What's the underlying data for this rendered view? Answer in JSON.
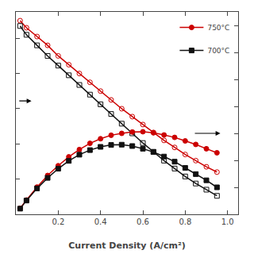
{
  "chart_data": {
    "type": "line",
    "xlabel": "Current Density (A/cm²)",
    "tick_labels": "x",
    "grid": false,
    "legend": "upper right",
    "xlim": [
      0.0,
      1.05
    ],
    "xticks": [
      0.2,
      0.4,
      0.6,
      0.8,
      {
        "value": 1.0,
        "label": "1.0"
      }
    ],
    "ylim": [
      0.0,
      1.15
    ],
    "yticks": [
      0.0,
      0.2,
      0.4,
      0.6,
      0.8,
      1.0
    ],
    "y2lim": [
      0.0,
      0.75
    ],
    "y2ticks": [
      0.0,
      0.1,
      0.2,
      0.3,
      0.4,
      0.5,
      0.6,
      0.7
    ],
    "series": [
      {
        "name": "750°C",
        "color": "#cc0000",
        "marker": "circle-open",
        "line_style": "solid",
        "axis": "y",
        "x": [
          0.02,
          0.05,
          0.1,
          0.15,
          0.2,
          0.25,
          0.3,
          0.35,
          0.4,
          0.45,
          0.5,
          0.55,
          0.6,
          0.65,
          0.7,
          0.75,
          0.8,
          0.85,
          0.9,
          0.95
        ],
        "values": [
          1.1,
          1.06,
          1.01,
          0.96,
          0.9,
          0.85,
          0.8,
          0.75,
          0.7,
          0.65,
          0.6,
          0.555,
          0.51,
          0.465,
          0.42,
          0.38,
          0.34,
          0.305,
          0.27,
          0.24
        ]
      },
      {
        "name": "700°C",
        "color": "#111111",
        "marker": "square-open",
        "line_style": "solid",
        "axis": "y",
        "x": [
          0.02,
          0.05,
          0.1,
          0.15,
          0.2,
          0.25,
          0.3,
          0.35,
          0.4,
          0.45,
          0.5,
          0.55,
          0.6,
          0.65,
          0.7,
          0.75,
          0.8,
          0.85,
          0.9,
          0.95
        ],
        "values": [
          1.07,
          1.02,
          0.96,
          0.9,
          0.845,
          0.79,
          0.735,
          0.68,
          0.625,
          0.57,
          0.515,
          0.46,
          0.405,
          0.355,
          0.305,
          0.26,
          0.215,
          0.175,
          0.14,
          0.105
        ]
      },
      {
        "name": "750°C",
        "color": "#cc0000",
        "marker": "circle",
        "line_style": "solid",
        "axis": "y2",
        "x": [
          0.02,
          0.05,
          0.1,
          0.15,
          0.2,
          0.25,
          0.3,
          0.35,
          0.4,
          0.45,
          0.5,
          0.55,
          0.6,
          0.65,
          0.7,
          0.75,
          0.8,
          0.85,
          0.9,
          0.95
        ],
        "values": [
          0.022,
          0.053,
          0.101,
          0.144,
          0.18,
          0.213,
          0.24,
          0.263,
          0.28,
          0.293,
          0.3,
          0.305,
          0.306,
          0.302,
          0.294,
          0.285,
          0.272,
          0.259,
          0.243,
          0.228
        ]
      },
      {
        "name": "700°C",
        "color": "#111111",
        "marker": "square",
        "line_style": "solid",
        "axis": "y2",
        "x": [
          0.02,
          0.05,
          0.1,
          0.15,
          0.2,
          0.25,
          0.3,
          0.35,
          0.4,
          0.45,
          0.5,
          0.55,
          0.6,
          0.65,
          0.7,
          0.75,
          0.8,
          0.85,
          0.9,
          0.95
        ],
        "values": [
          0.021,
          0.051,
          0.096,
          0.135,
          0.169,
          0.198,
          0.221,
          0.238,
          0.25,
          0.257,
          0.258,
          0.253,
          0.243,
          0.231,
          0.214,
          0.195,
          0.172,
          0.149,
          0.126,
          0.1
        ]
      }
    ]
  }
}
